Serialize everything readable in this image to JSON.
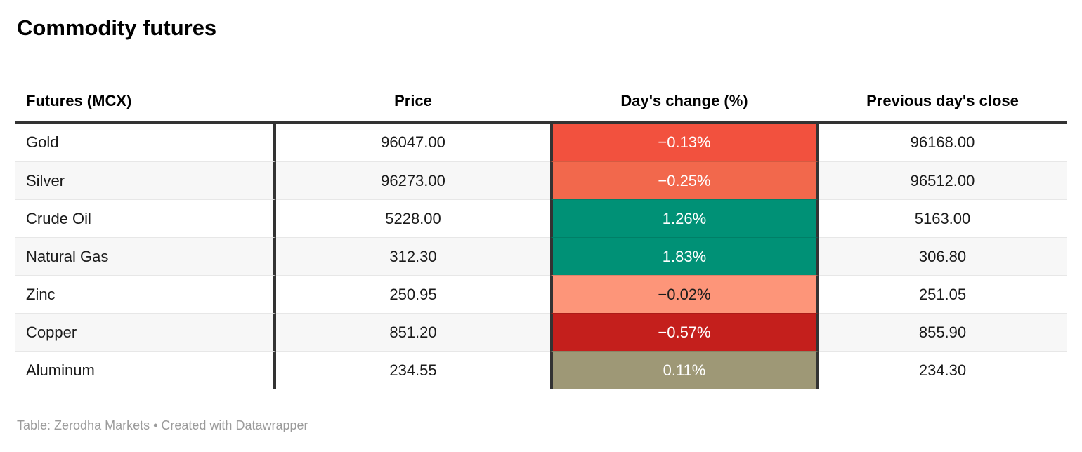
{
  "title": "Commodity futures",
  "table": {
    "columns": [
      "Futures (MCX)",
      "Price",
      "Day's change (%)",
      "Previous day's close"
    ],
    "rows": [
      {
        "name": "Gold",
        "price": "96047.00",
        "change": "−0.13%",
        "prev_close": "96168.00",
        "change_bg": "#f2513e",
        "change_text": "#ffffff"
      },
      {
        "name": "Silver",
        "price": "96273.00",
        "change": "−0.25%",
        "prev_close": "96512.00",
        "change_bg": "#f2684c",
        "change_text": "#ffffff"
      },
      {
        "name": "Crude Oil",
        "price": "5228.00",
        "change": "1.26%",
        "prev_close": "5163.00",
        "change_bg": "#009176",
        "change_text": "#ffffff"
      },
      {
        "name": "Natural Gas",
        "price": "312.30",
        "change": "1.83%",
        "prev_close": "306.80",
        "change_bg": "#009176",
        "change_text": "#ffffff"
      },
      {
        "name": "Zinc",
        "price": "250.95",
        "change": "−0.02%",
        "prev_close": "251.05",
        "change_bg": "#fd9579",
        "change_text": "#1d1d1d"
      },
      {
        "name": "Copper",
        "price": "851.20",
        "change": "−0.57%",
        "prev_close": "855.90",
        "change_bg": "#c41f1c",
        "change_text": "#ffffff"
      },
      {
        "name": "Aluminum",
        "price": "234.55",
        "change": "0.11%",
        "prev_close": "234.30",
        "change_bg": "#9e9876",
        "change_text": "#ffffff"
      }
    ]
  },
  "footer": "Table: Zerodha Markets • Created with Datawrapper",
  "colors": {
    "rule_dark": "#333333",
    "row_alt_bg": "#f7f7f7",
    "row_separator": "#e7e7e7",
    "footer_text": "#9b9b9b"
  },
  "chart_data": {
    "type": "table",
    "title": "Commodity futures",
    "columns": [
      "Futures (MCX)",
      "Price",
      "Day's change (%)",
      "Previous day's close"
    ],
    "rows": [
      [
        "Gold",
        96047.0,
        -0.13,
        96168.0
      ],
      [
        "Silver",
        96273.0,
        -0.25,
        96512.0
      ],
      [
        "Crude Oil",
        5228.0,
        1.26,
        5163.0
      ],
      [
        "Natural Gas",
        312.3,
        1.83,
        306.8
      ],
      [
        "Zinc",
        250.95,
        -0.02,
        251.05
      ],
      [
        "Copper",
        851.2,
        -0.57,
        855.9
      ],
      [
        "Aluminum",
        234.55,
        0.11,
        234.3
      ]
    ],
    "cell_color_encoding": "Day's change column: negative = red/orange shades, positive = teal green, near-zero positive = olive",
    "source": "Table: Zerodha Markets",
    "tool": "Created with Datawrapper"
  }
}
